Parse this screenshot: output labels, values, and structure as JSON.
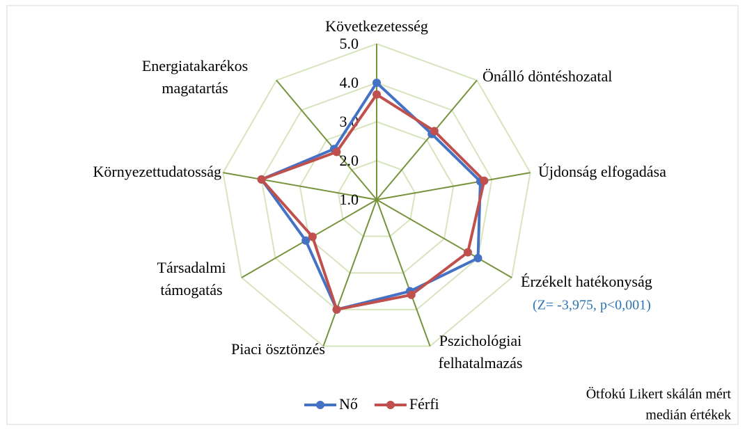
{
  "chart_data": {
    "type": "radar",
    "categories": [
      "Következetesség",
      "Önálló döntéshozatal",
      "Újdonság elfogadása",
      "Érzékelt hatékonyság",
      "Pszichológiai felhatalmazás",
      "Piaci ösztönzés",
      "Társadalmi támogatás",
      "Környezettudatosság",
      "Energiatakarékos magatartás"
    ],
    "series": [
      {
        "name": "Nő",
        "color": "#4472c4",
        "values": [
          4.0,
          3.2,
          3.7,
          4.0,
          3.5,
          4.0,
          3.1,
          4.0,
          2.7
        ]
      },
      {
        "name": "Férfi",
        "color": "#c0504d",
        "values": [
          3.7,
          3.3,
          3.8,
          3.7,
          3.6,
          4.0,
          2.9,
          4.0,
          2.6
        ]
      }
    ],
    "rlim": [
      1,
      5
    ],
    "rticks": [
      {
        "value": 1,
        "label": "1.0"
      },
      {
        "value": 2,
        "label": "2.0"
      },
      {
        "value": 3,
        "label": "3.0"
      },
      {
        "value": 4,
        "label": "4.0"
      },
      {
        "value": 5,
        "label": "5.0"
      }
    ],
    "grid": true,
    "legend": "bottom",
    "annotation": "(Z= -3,975, p<0,001)",
    "note": [
      "Ötfokú Likert skálán mért",
      "medián értékek"
    ]
  }
}
